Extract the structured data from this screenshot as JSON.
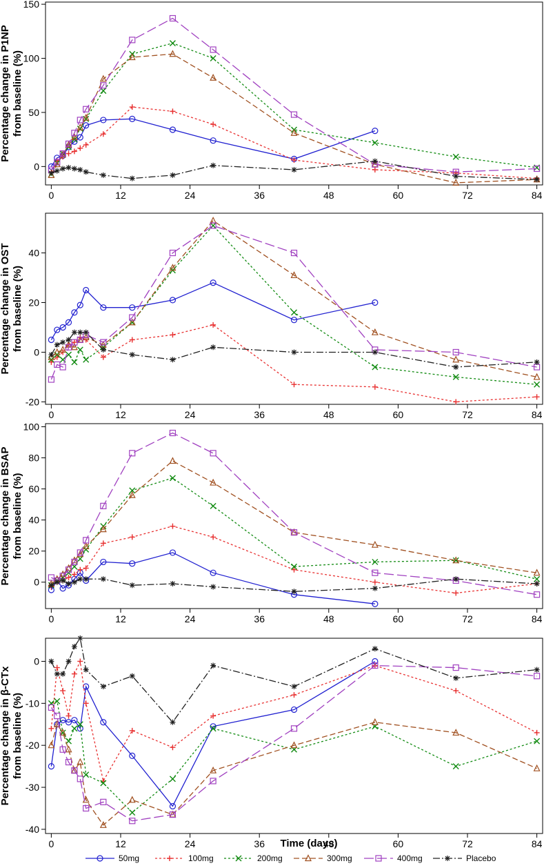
{
  "figure": {
    "xlabel": "Time (days)",
    "x_ticks": [
      0,
      12,
      24,
      36,
      48,
      60,
      72,
      84
    ]
  },
  "legend": [
    {
      "key": "50mg",
      "label": "50mg",
      "color": "#2020d0",
      "marker": "circle",
      "dash": "solid"
    },
    {
      "key": "100mg",
      "label": "100mg",
      "color": "#e83030",
      "marker": "plus",
      "dash": "dot"
    },
    {
      "key": "200mg",
      "label": "200mg",
      "color": "#108a10",
      "marker": "x",
      "dash": "dot"
    },
    {
      "key": "300mg",
      "label": "300mg",
      "color": "#a05020",
      "marker": "triangle",
      "dash": "dash"
    },
    {
      "key": "400mg",
      "label": "400mg",
      "color": "#a040c0",
      "marker": "square",
      "dash": "longdash"
    },
    {
      "key": "Placebo",
      "label": "Placebo",
      "color": "#202020",
      "marker": "star",
      "dash": "dashdot"
    }
  ],
  "chart_data": [
    {
      "type": "line",
      "id": "p1np",
      "ylabel_line1": "Percentage change in P1NP",
      "ylabel_line2": "from baseline (%)",
      "ylim": [
        -17,
        152
      ],
      "y_ticks": [
        0,
        50,
        100,
        150
      ],
      "xlim": [
        -1,
        85
      ],
      "series": [
        {
          "name": "50mg",
          "x": [
            0,
            1,
            2,
            3,
            4,
            5,
            6,
            9,
            14,
            21,
            28,
            42,
            56
          ],
          "y": [
            0,
            8,
            10,
            18,
            23,
            27,
            38,
            43,
            44,
            34,
            24,
            7,
            33
          ]
        },
        {
          "name": "100mg",
          "x": [
            0,
            1,
            2,
            3,
            4,
            5,
            6,
            9,
            14,
            21,
            28,
            42,
            56,
            70,
            84
          ],
          "y": [
            -5,
            5,
            9,
            12,
            14,
            17,
            20,
            30,
            55,
            51,
            39,
            6,
            -3,
            -6,
            -11
          ]
        },
        {
          "name": "200mg",
          "x": [
            0,
            1,
            2,
            3,
            4,
            5,
            6,
            9,
            14,
            21,
            28,
            42,
            56,
            70,
            84
          ],
          "y": [
            -7,
            3,
            12,
            18,
            25,
            35,
            44,
            70,
            104,
            114,
            100,
            34,
            22,
            9,
            -1
          ]
        },
        {
          "name": "300mg",
          "x": [
            0,
            1,
            2,
            3,
            4,
            5,
            6,
            9,
            14,
            21,
            28,
            42,
            56,
            70,
            84
          ],
          "y": [
            -8,
            2,
            11,
            20,
            27,
            36,
            45,
            81,
            101,
            104,
            82,
            31,
            2,
            -15,
            -12
          ]
        },
        {
          "name": "400mg",
          "x": [
            0,
            1,
            2,
            3,
            4,
            5,
            6,
            9,
            14,
            21,
            28,
            42,
            56,
            70,
            84
          ],
          "y": [
            -3,
            4,
            12,
            21,
            31,
            43,
            53,
            75,
            117,
            137,
            108,
            48,
            2,
            -5,
            -2
          ]
        },
        {
          "name": "Placebo",
          "x": [
            0,
            1,
            2,
            3,
            4,
            5,
            6,
            9,
            14,
            21,
            28,
            42,
            56,
            70,
            84
          ],
          "y": [
            -6,
            -4,
            -2,
            -1,
            -2,
            -3,
            -5,
            -8,
            -11,
            -8,
            1,
            -3,
            5,
            -9,
            -12
          ]
        }
      ]
    },
    {
      "type": "line",
      "id": "ost",
      "ylabel_line1": "Percentage change in OST",
      "ylabel_line2": "from baseline (%)",
      "ylim": [
        -21,
        56
      ],
      "y_ticks": [
        -20,
        0,
        20,
        40
      ],
      "xlim": [
        -1,
        85
      ],
      "series": [
        {
          "name": "50mg",
          "x": [
            0,
            1,
            2,
            3,
            4,
            5,
            6,
            9,
            14,
            21,
            28,
            42,
            56
          ],
          "y": [
            5,
            9,
            10,
            12,
            16,
            19,
            25,
            18,
            18,
            21,
            28,
            13,
            20
          ]
        },
        {
          "name": "100mg",
          "x": [
            0,
            1,
            2,
            3,
            4,
            5,
            6,
            9,
            14,
            21,
            28,
            42,
            56,
            70,
            84
          ],
          "y": [
            -4,
            -2,
            0,
            3,
            4,
            6,
            5,
            -2,
            5,
            7,
            11,
            -13,
            -14,
            -20,
            -18
          ]
        },
        {
          "name": "200mg",
          "x": [
            0,
            1,
            2,
            3,
            4,
            5,
            6,
            9,
            14,
            21,
            28,
            42,
            56,
            70,
            84
          ],
          "y": [
            -3,
            -1,
            -3,
            -1,
            -4,
            1,
            -3,
            2,
            12,
            33,
            51,
            16,
            -6,
            -10,
            -13
          ]
        },
        {
          "name": "300mg",
          "x": [
            0,
            1,
            2,
            3,
            4,
            5,
            6,
            9,
            14,
            21,
            28,
            42,
            56,
            70,
            84
          ],
          "y": [
            -2,
            0,
            1,
            3,
            2,
            5,
            6,
            3,
            12,
            34,
            53,
            31,
            8,
            -3,
            -10
          ]
        },
        {
          "name": "400mg",
          "x": [
            0,
            1,
            2,
            3,
            4,
            5,
            6,
            9,
            14,
            21,
            28,
            42,
            56,
            70,
            84
          ],
          "y": [
            -11,
            -5,
            -6,
            2,
            4,
            5,
            7,
            4,
            14,
            40,
            51,
            40,
            1,
            0,
            -6
          ]
        },
        {
          "name": "Placebo",
          "x": [
            0,
            1,
            2,
            3,
            4,
            5,
            6,
            9,
            14,
            21,
            28,
            42,
            56,
            70,
            84
          ],
          "y": [
            -1,
            3,
            4,
            5,
            8,
            8,
            8,
            1,
            -1,
            -3,
            2,
            0,
            0,
            -6,
            -4
          ]
        }
      ]
    },
    {
      "type": "line",
      "id": "bsap",
      "ylabel_line1": "Percentage change in BSAP",
      "ylabel_line2": "from baseline (%)",
      "ylim": [
        -17,
        102
      ],
      "y_ticks": [
        0,
        20,
        40,
        60,
        80,
        100
      ],
      "xlim": [
        -1,
        85
      ],
      "series": [
        {
          "name": "50mg",
          "x": [
            0,
            1,
            2,
            3,
            4,
            5,
            6,
            9,
            14,
            21,
            28,
            42,
            56
          ],
          "y": [
            -5,
            1,
            -4,
            -2,
            2,
            6,
            1,
            13,
            12,
            19,
            6,
            -8,
            -14
          ]
        },
        {
          "name": "100mg",
          "x": [
            0,
            1,
            2,
            3,
            4,
            5,
            6,
            9,
            14,
            21,
            28,
            42,
            56,
            70,
            84
          ],
          "y": [
            -3,
            0,
            1,
            3,
            5,
            8,
            9,
            25,
            29,
            36,
            29,
            8,
            0,
            -7,
            -1
          ]
        },
        {
          "name": "200mg",
          "x": [
            0,
            1,
            2,
            3,
            4,
            5,
            6,
            9,
            14,
            21,
            28,
            42,
            56,
            70,
            84
          ],
          "y": [
            -2,
            1,
            3,
            6,
            10,
            15,
            21,
            36,
            59,
            67,
            49,
            10,
            13,
            14,
            2
          ]
        },
        {
          "name": "300mg",
          "x": [
            0,
            1,
            2,
            3,
            4,
            5,
            6,
            9,
            14,
            21,
            28,
            42,
            56,
            70,
            84
          ],
          "y": [
            -1,
            2,
            5,
            9,
            14,
            18,
            23,
            34,
            56,
            78,
            64,
            32,
            24,
            14,
            6
          ]
        },
        {
          "name": "400mg",
          "x": [
            0,
            1,
            2,
            3,
            4,
            5,
            6,
            9,
            14,
            21,
            28,
            42,
            56,
            70,
            84
          ],
          "y": [
            3,
            1,
            4,
            8,
            13,
            19,
            27,
            49,
            83,
            96,
            83,
            32,
            6,
            1,
            -8
          ]
        },
        {
          "name": "Placebo",
          "x": [
            0,
            1,
            2,
            3,
            4,
            5,
            6,
            9,
            14,
            21,
            28,
            42,
            56,
            70,
            84
          ],
          "y": [
            -2,
            0,
            1,
            -1,
            0,
            2,
            2,
            2,
            -2,
            -1,
            -3,
            -6,
            -4,
            2,
            -1
          ]
        }
      ]
    },
    {
      "type": "line",
      "id": "bctx",
      "ylabel_line1": "Percentage change in β-CTx",
      "ylabel_line2": "from baseline (%)",
      "ylim": [
        -41,
        5.5
      ],
      "y_ticks": [
        -40,
        -30,
        -20,
        -10,
        0
      ],
      "xlim": [
        -1,
        85
      ],
      "series": [
        {
          "name": "50mg",
          "x": [
            0,
            1,
            2,
            3,
            4,
            5,
            6,
            9,
            14,
            21,
            28,
            42,
            56
          ],
          "y": [
            -25,
            -15,
            -14,
            -14.5,
            -14,
            -16,
            -6,
            -14.5,
            -22.5,
            -34.5,
            -15.5,
            -11.5,
            0
          ]
        },
        {
          "name": "100mg",
          "x": [
            0,
            1,
            2,
            3,
            4,
            5,
            6,
            9,
            14,
            21,
            28,
            42,
            56,
            70,
            84
          ],
          "y": [
            -16,
            -1.5,
            -7,
            -13,
            -3,
            0,
            -10,
            -28.5,
            -16.5,
            -20.5,
            -13,
            -8,
            -1,
            -7,
            -17
          ]
        },
        {
          "name": "200mg",
          "x": [
            0,
            1,
            2,
            3,
            4,
            5,
            6,
            9,
            14,
            21,
            28,
            42,
            56,
            70,
            84
          ],
          "y": [
            -10,
            -9.5,
            -17,
            -19,
            -16,
            -15,
            -27,
            -29,
            -36,
            -28,
            -16,
            -21,
            -15.5,
            -25,
            -19
          ]
        },
        {
          "name": "300mg",
          "x": [
            0,
            1,
            2,
            3,
            4,
            5,
            6,
            9,
            14,
            21,
            28,
            42,
            56,
            70,
            84
          ],
          "y": [
            -20,
            -15,
            -17,
            -21,
            -26,
            -24,
            -33,
            -39,
            -33,
            -36.5,
            -26,
            -20,
            -14.5,
            -17,
            -25.5
          ]
        },
        {
          "name": "400mg",
          "x": [
            0,
            1,
            2,
            3,
            4,
            5,
            6,
            9,
            14,
            21,
            28,
            42,
            56,
            70,
            84
          ],
          "y": [
            -11,
            -13,
            -21,
            -24,
            -26,
            -28,
            -35,
            -33.5,
            -38,
            -36.5,
            -28.5,
            -16,
            -1,
            -1.5,
            -3.5
          ]
        },
        {
          "name": "Placebo",
          "x": [
            0,
            1,
            2,
            3,
            4,
            5,
            6,
            9,
            14,
            21,
            28,
            42,
            56,
            70,
            84
          ],
          "y": [
            0,
            -3,
            -3,
            0,
            3.5,
            5.5,
            -2,
            -6,
            -3.5,
            -14.5,
            -1,
            -6,
            3,
            -4,
            -2
          ]
        }
      ]
    }
  ]
}
